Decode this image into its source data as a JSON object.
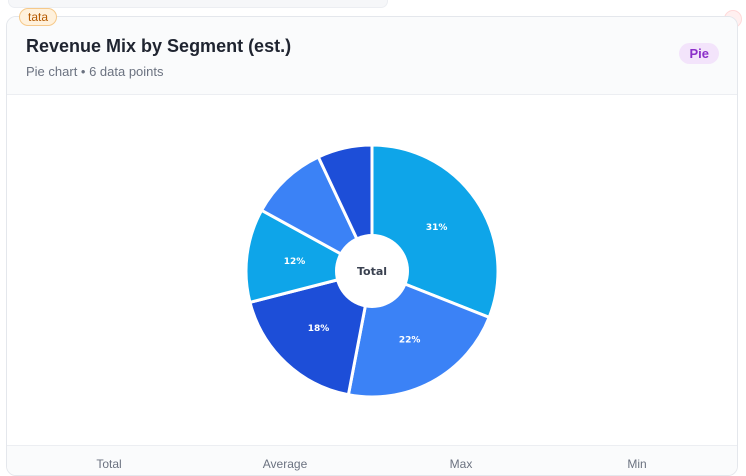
{
  "tag": "tata",
  "header": {
    "title": "Revenue Mix by Segment (est.)",
    "subtitle": "Pie chart • 6 data points",
    "badge": "Pie"
  },
  "chart_data": {
    "type": "pie",
    "donut": true,
    "center_label": "Total",
    "start_angle_deg": 0,
    "values": [
      31,
      22,
      18,
      12,
      10,
      7
    ],
    "colors": [
      "#0ea5e9",
      "#3b82f6",
      "#1d4ed8",
      "#0ea5e9",
      "#3b82f6",
      "#1d4ed8"
    ],
    "data_labels": [
      "31%",
      "22%",
      "18%",
      "12%",
      "",
      ""
    ]
  },
  "stats": {
    "labels": [
      "Total",
      "Average",
      "Max",
      "Min"
    ]
  }
}
